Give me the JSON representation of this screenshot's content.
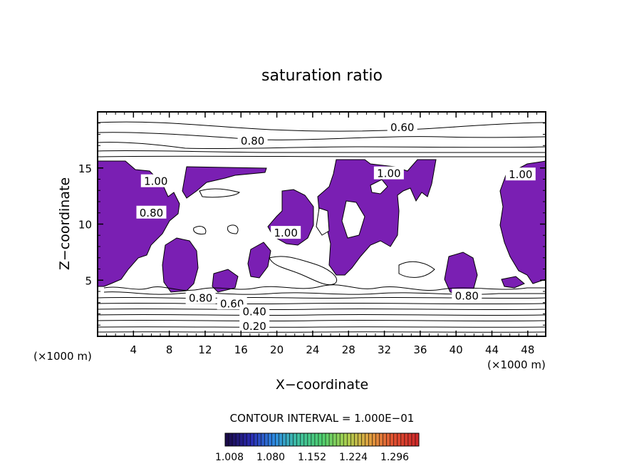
{
  "chart_data": {
    "type": "contour",
    "title": "saturation ratio",
    "xlabel": "X−coordinate",
    "ylabel": "Z−coordinate",
    "x_unit": "(×1000 m)",
    "z_unit": "(×1000 m)",
    "xlim": [
      0,
      50
    ],
    "ylim": [
      0,
      20
    ],
    "x_ticks": [
      "4",
      "8",
      "12",
      "16",
      "20",
      "24",
      "28",
      "32",
      "36",
      "40",
      "44",
      "48"
    ],
    "y_ticks": [
      "5",
      "10",
      "15"
    ],
    "contour_interval_label": "CONTOUR INTERVAL = 1.000E−01",
    "contour_labels": [
      {
        "text": "0.60",
        "x": 34.0,
        "z": 18.6
      },
      {
        "text": "0.80",
        "x": 17.3,
        "z": 17.4
      },
      {
        "text": "1.00",
        "x": 6.5,
        "z": 13.8
      },
      {
        "text": "0.80",
        "x": 6.0,
        "z": 11.0
      },
      {
        "text": "1.00",
        "x": 21.0,
        "z": 9.2
      },
      {
        "text": "1.00",
        "x": 32.5,
        "z": 14.5
      },
      {
        "text": "1.00",
        "x": 47.2,
        "z": 14.4
      },
      {
        "text": "0.80",
        "x": 11.5,
        "z": 3.4
      },
      {
        "text": "0.60",
        "x": 15.0,
        "z": 2.9
      },
      {
        "text": "0.40",
        "x": 17.5,
        "z": 2.2
      },
      {
        "text": "0.20",
        "x": 17.5,
        "z": 0.9
      },
      {
        "text": "0.80",
        "x": 41.2,
        "z": 3.6
      }
    ],
    "fill": {
      "threshold": 1.0,
      "color": "#7a1fb3",
      "edge_color": "#3a3acc"
    },
    "colorbar": {
      "min": 1.008,
      "max": 1.296,
      "tick_labels": [
        "1.008",
        "1.080",
        "1.152",
        "1.224",
        "1.296"
      ],
      "colors": [
        "#1a0a4a",
        "#2a2ab0",
        "#2e8ae0",
        "#3fc0a0",
        "#4fd070",
        "#a8d050",
        "#e0a040",
        "#e05030",
        "#d02a2a"
      ]
    },
    "colors": {
      "fill": "#7a1fb3",
      "contour": "#000000"
    }
  }
}
